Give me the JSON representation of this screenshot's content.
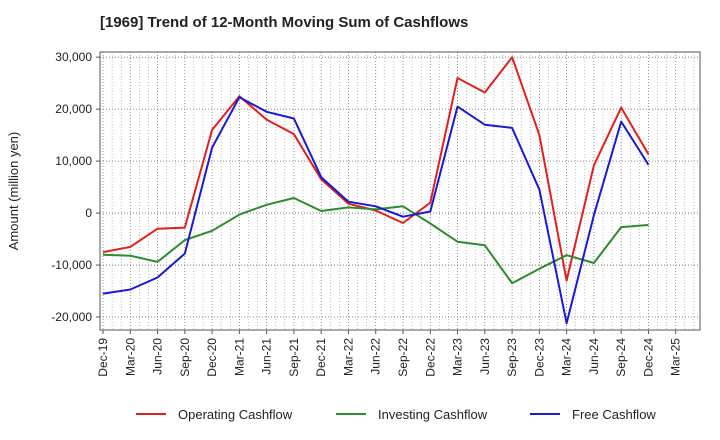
{
  "chart_data": {
    "type": "line",
    "title": "[1969]  Trend of 12-Month Moving Sum of Cashflows",
    "xlabel": "",
    "ylabel": "Amount (million yen)",
    "ylim": [
      -22500,
      31000
    ],
    "yticks": [
      -20000,
      -10000,
      0,
      10000,
      20000,
      30000
    ],
    "ytick_labels": [
      "-20,000",
      "-10,000",
      "0",
      "10,000",
      "20,000",
      "30,000"
    ],
    "categories": [
      "Dec-19",
      "Mar-20",
      "Jun-20",
      "Sep-20",
      "Dec-20",
      "Mar-21",
      "Jun-21",
      "Sep-21",
      "Dec-21",
      "Mar-22",
      "Jun-22",
      "Sep-22",
      "Dec-22",
      "Mar-23",
      "Jun-23",
      "Sep-23",
      "Dec-23",
      "Mar-24",
      "Jun-24",
      "Sep-24",
      "Dec-24",
      "Mar-25"
    ],
    "grid": true,
    "legend_position": "bottom",
    "series": [
      {
        "name": "Operating Cashflow",
        "color": "#e02020",
        "values": [
          -7500,
          -6500,
          -3000,
          -2800,
          16000,
          22500,
          18000,
          15200,
          6500,
          1800,
          500,
          -1900,
          2000,
          26000,
          23200,
          30000,
          15000,
          -13000,
          9200,
          20300,
          11300,
          null
        ]
      },
      {
        "name": "Investing Cashflow",
        "color": "#2e8b2e",
        "values": [
          -8000,
          -8200,
          -9400,
          -5200,
          -3400,
          -300,
          1600,
          2900,
          400,
          1100,
          700,
          1300,
          -2000,
          -5500,
          -6200,
          -13500,
          -10700,
          -8100,
          -9600,
          -2700,
          -2300,
          null
        ]
      },
      {
        "name": "Free Cashflow",
        "color": "#1a1ad0",
        "values": [
          -15500,
          -14700,
          -12400,
          -7800,
          12600,
          22300,
          19500,
          18200,
          6900,
          2200,
          1300,
          -700,
          300,
          20500,
          17000,
          16400,
          4500,
          -21200,
          -400,
          17600,
          9300,
          null
        ]
      }
    ]
  }
}
